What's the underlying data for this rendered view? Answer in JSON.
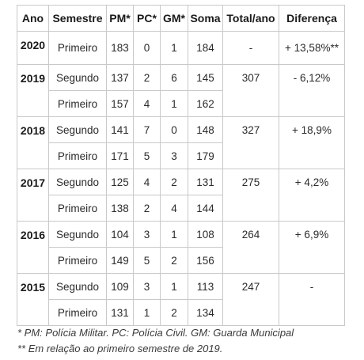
{
  "headers": [
    "Ano",
    "Semestre",
    "PM*",
    "PC*",
    "GM*",
    "Soma",
    "Total/ano",
    "Diferença"
  ],
  "years": [
    {
      "year": "2020",
      "total": "-",
      "diff": "+ 13,58%**",
      "rows": [
        {
          "semester": "Primeiro",
          "pm": "183",
          "pc": "0",
          "gm": "1",
          "soma": "184"
        }
      ]
    },
    {
      "year": "2019",
      "total": "307",
      "diff": "- 6,12%",
      "rows": [
        {
          "semester": "Segundo",
          "pm": "137",
          "pc": "2",
          "gm": "6",
          "soma": "145"
        },
        {
          "semester": "Primeiro",
          "pm": "157",
          "pc": "4",
          "gm": "1",
          "soma": "162"
        }
      ]
    },
    {
      "year": "2018",
      "total": "327",
      "diff": "+ 18,9%",
      "rows": [
        {
          "semester": "Segundo",
          "pm": "141",
          "pc": "7",
          "gm": "0",
          "soma": "148"
        },
        {
          "semester": "Primeiro",
          "pm": "171",
          "pc": "5",
          "gm": "3",
          "soma": "179"
        }
      ]
    },
    {
      "year": "2017",
      "total": "275",
      "diff": "+ 4,2%",
      "rows": [
        {
          "semester": "Segundo",
          "pm": "125",
          "pc": "4",
          "gm": "2",
          "soma": "131"
        },
        {
          "semester": "Primeiro",
          "pm": "138",
          "pc": "2",
          "gm": "4",
          "soma": "144"
        }
      ]
    },
    {
      "year": "2016",
      "total": "264",
      "diff": "+ 6,9%",
      "rows": [
        {
          "semester": "Segundo",
          "pm": "104",
          "pc": "3",
          "gm": "1",
          "soma": "108"
        },
        {
          "semester": "Primeiro",
          "pm": "149",
          "pc": "5",
          "gm": "2",
          "soma": "156"
        }
      ]
    },
    {
      "year": "2015",
      "total": "247",
      "diff": "-",
      "rows": [
        {
          "semester": "Segundo",
          "pm": "109",
          "pc": "3",
          "gm": "1",
          "soma": "113"
        },
        {
          "semester": "Primeiro",
          "pm": "131",
          "pc": "1",
          "gm": "2",
          "soma": "134"
        }
      ]
    }
  ],
  "notes": [
    "* PM: Polícia Militar. PC: Polícia Civil. GM: Guarda Municipal",
    "** Em relação ao primeiro semestre de 2019."
  ],
  "colors": {
    "border": "#c9c9c9",
    "text": "#2b2b2b",
    "header": "#1a1a1a"
  }
}
